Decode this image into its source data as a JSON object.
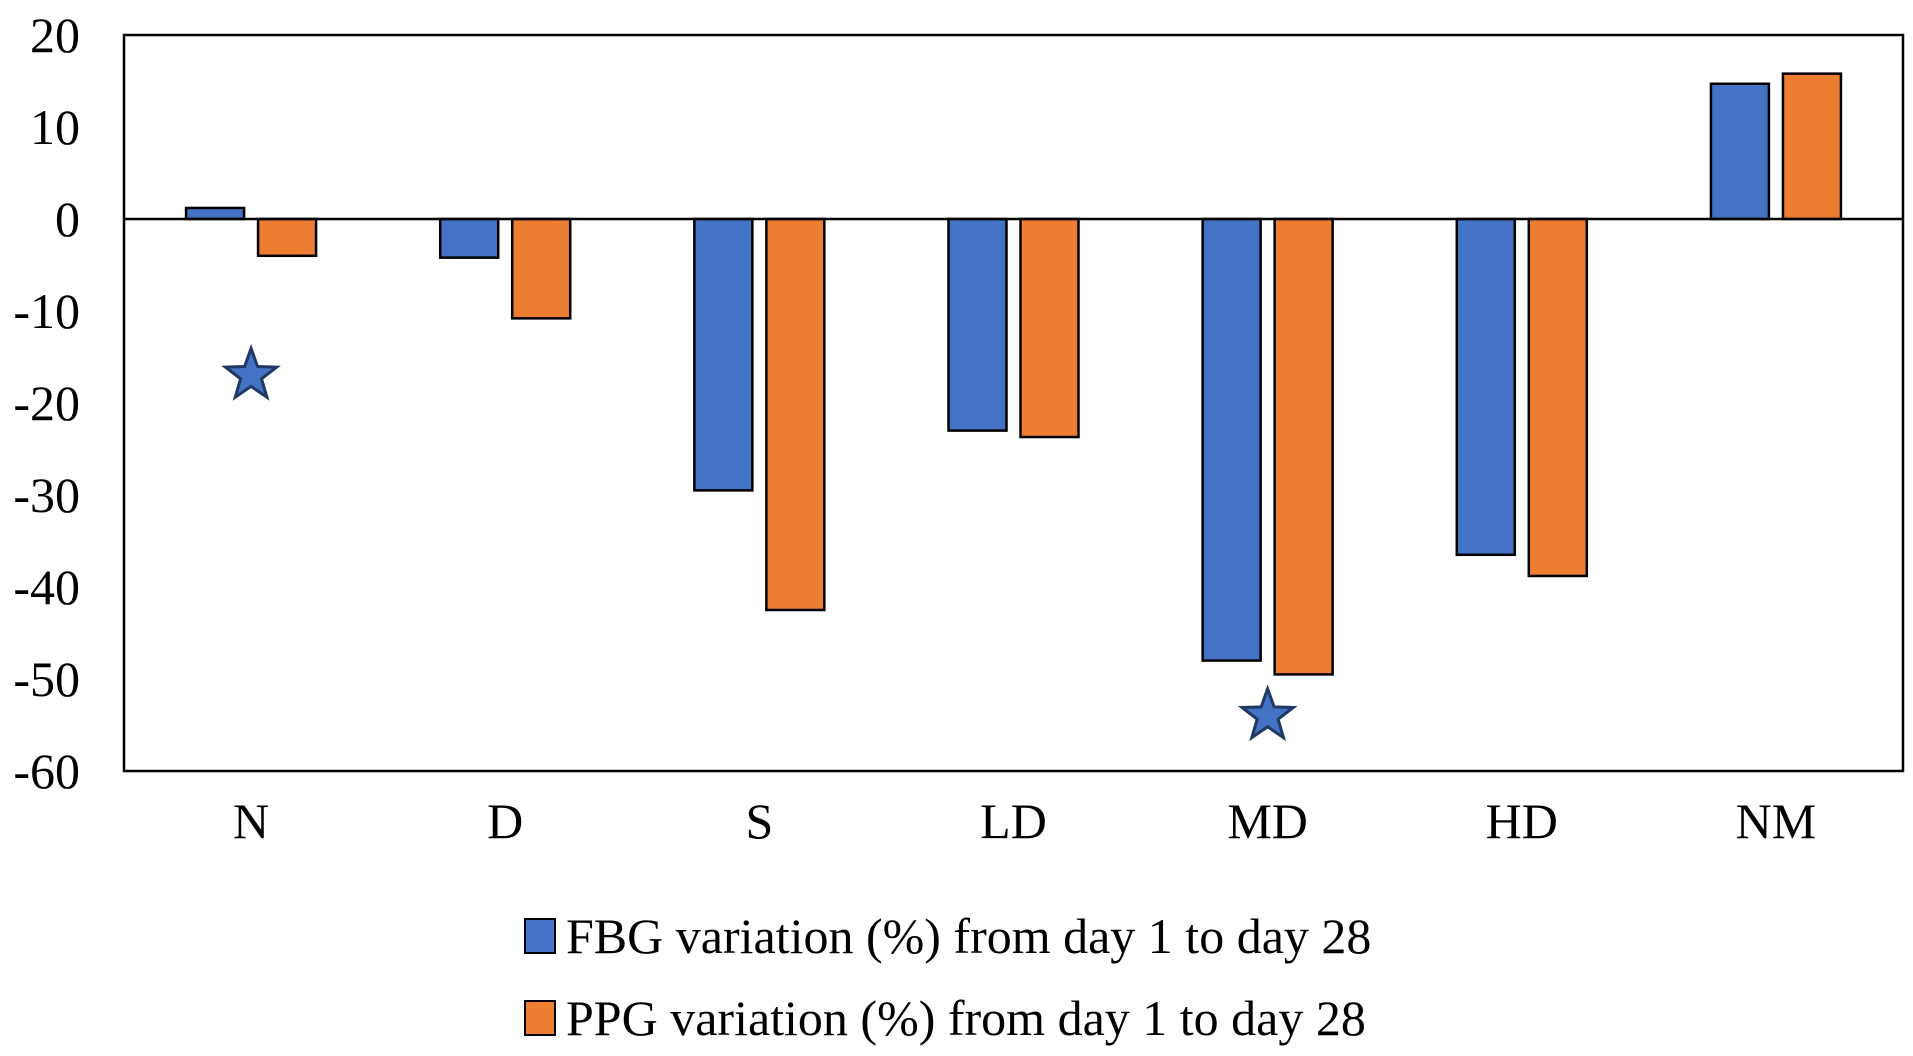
{
  "chart_data": {
    "type": "bar",
    "title": "",
    "xlabel": "",
    "ylabel": "",
    "ylim": [
      -60,
      20
    ],
    "yticks": [
      20,
      10,
      0,
      -10,
      -20,
      -30,
      -40,
      -50,
      -60
    ],
    "grid": false,
    "legend_position": "bottom",
    "categories": [
      "N",
      "D",
      "S",
      "LD",
      "MD",
      "HD",
      "NM"
    ],
    "series": [
      {
        "name": "FBG variation (%) from day 1 to day 28",
        "color": "#4472C4",
        "values": [
          1.2,
          -4.2,
          -29.5,
          -23,
          -48,
          -36.5,
          14.7
        ]
      },
      {
        "name": "PPG variation (%) from day 1 to day 28",
        "color": "#ED7D31",
        "values": [
          -4,
          -10.8,
          -42.5,
          -23.7,
          -49.5,
          -38.8,
          15.8
        ]
      }
    ],
    "annotations": [
      {
        "symbol": "star",
        "category": "N",
        "y": -17,
        "color": "#4472C4"
      },
      {
        "symbol": "star",
        "category": "MD",
        "y": -54,
        "color": "#4472C4"
      }
    ]
  }
}
